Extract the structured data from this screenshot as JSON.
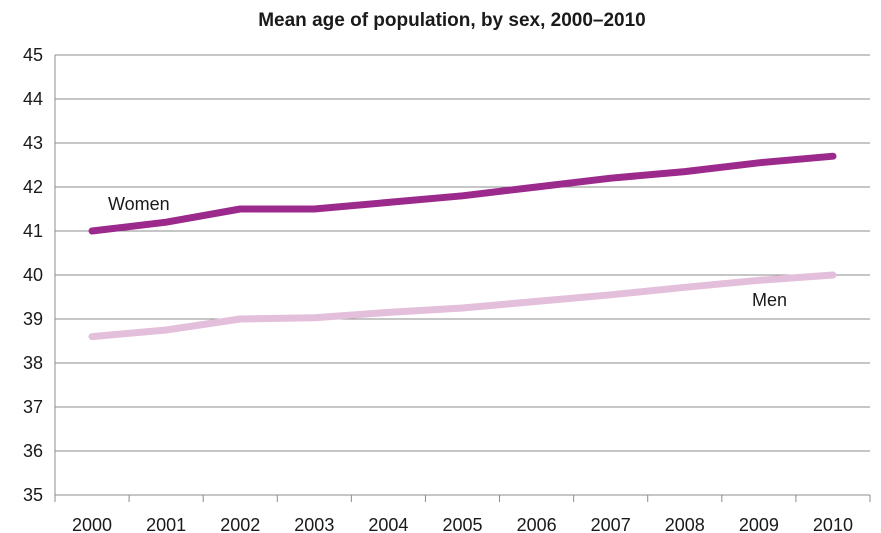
{
  "chart_data": {
    "type": "line",
    "title": "Mean age of population, by sex, 2000–2010",
    "xlabel": "",
    "ylabel": "",
    "x": [
      "2000",
      "2001",
      "2002",
      "2003",
      "2004",
      "2005",
      "2006",
      "2007",
      "2008",
      "2009",
      "2010"
    ],
    "ylim": [
      35,
      45
    ],
    "yticks": [
      "35",
      "36",
      "37",
      "38",
      "39",
      "40",
      "41",
      "42",
      "43",
      "44",
      "45"
    ],
    "grid": true,
    "legend": "none",
    "series": [
      {
        "name": "Women",
        "color": "#9b2a8c",
        "values": [
          41.0,
          41.2,
          41.5,
          41.5,
          41.65,
          41.8,
          42.0,
          42.2,
          42.35,
          42.55,
          42.7
        ]
      },
      {
        "name": "Men",
        "color": "#e3bfdc",
        "values": [
          38.6,
          38.75,
          39.0,
          39.03,
          39.15,
          39.25,
          39.4,
          39.55,
          39.72,
          39.88,
          40.0
        ]
      }
    ]
  }
}
